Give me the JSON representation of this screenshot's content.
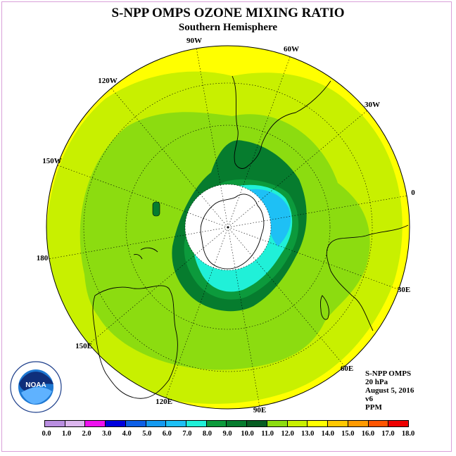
{
  "title": "S-NPP OMPS OZONE MIXING RATIO",
  "subtitle": "Southern Hemisphere",
  "longitude_labels": [
    "90W",
    "60W",
    "30W",
    "0",
    "30E",
    "60E",
    "90E",
    "120E",
    "150E",
    "180",
    "150W",
    "120W"
  ],
  "info": {
    "instrument": "S-NPP OMPS",
    "level": "20 hPa",
    "date": "August 5, 2016",
    "version": "v6",
    "units": "PPM"
  },
  "logo_text": "NOAA",
  "colorbar": {
    "ticks": [
      "0.0",
      "1.0",
      "2.0",
      "3.0",
      "4.0",
      "5.0",
      "6.0",
      "7.0",
      "8.0",
      "9.0",
      "10.0",
      "11.0",
      "12.0",
      "13.0",
      "14.0",
      "15.0",
      "16.0",
      "17.0",
      "18.0"
    ],
    "colors": [
      "#b98ee0",
      "#dcb6ee",
      "#ee11ee",
      "#0000dd",
      "#0d5fe6",
      "#159af0",
      "#1ec0f5",
      "#20f0d8",
      "#0c9a3c",
      "#067c2e",
      "#075d22",
      "#8cdc10",
      "#c8f000",
      "#ffff00",
      "#ffc800",
      "#ff9a00",
      "#ff5500",
      "#ee0000",
      "#7a4a2c"
    ]
  },
  "map_colors": {
    "band_13": "#ffff00",
    "band_12": "#c8f000",
    "band_11": "#8cdc10",
    "band_10": "#067c2e",
    "band_9": "#0c9a3c",
    "band_8": "#20f0d8",
    "band_7": "#1ec0f5",
    "no_data": "#ffffff"
  }
}
